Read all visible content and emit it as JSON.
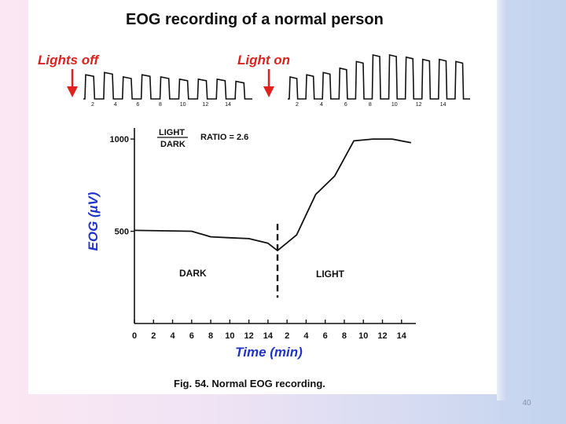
{
  "slide": {
    "title": "EOG recording of a normal person",
    "caption": "Fig. 54. Normal EOG recording.",
    "page_number": "40"
  },
  "raw_trace": {
    "lights_off_label": "Lights off",
    "light_on_label": "Light on",
    "dark_tick_labels": [
      "2",
      "4",
      "6",
      "8",
      "10",
      "12",
      "14"
    ],
    "light_tick_labels": [
      "2",
      "4",
      "6",
      "8",
      "10",
      "12",
      "14"
    ],
    "dark_pulse_amplitudes": [
      0.55,
      0.6,
      0.5,
      0.55,
      0.5,
      0.45,
      0.45,
      0.45,
      0.4
    ],
    "light_pulse_amplitudes": [
      0.5,
      0.55,
      0.6,
      0.7,
      0.85,
      1.0,
      1.0,
      0.95,
      0.9,
      0.9,
      0.85
    ],
    "arrow_color": "#e0221f"
  },
  "chart_data": {
    "type": "line",
    "title": "",
    "xlabel": "Time (min)",
    "ylabel": "EOG (µV)",
    "ratio_label": {
      "numerator": "LIGHT",
      "denominator": "DARK",
      "value": "RATIO = 2.6"
    },
    "region_labels": {
      "dark": "DARK",
      "light": "LIGHT"
    },
    "y_ticks": [
      {
        "value": 500,
        "label": "500"
      },
      {
        "value": 1000,
        "label": "1000"
      }
    ],
    "ylim": [
      0,
      1060
    ],
    "x_ticks": [
      {
        "t": 0,
        "label": "0"
      },
      {
        "t": 2,
        "label": "2"
      },
      {
        "t": 4,
        "label": "4"
      },
      {
        "t": 6,
        "label": "6"
      },
      {
        "t": 8,
        "label": "8"
      },
      {
        "t": 10,
        "label": "10"
      },
      {
        "t": 12,
        "label": "12"
      },
      {
        "t": 14,
        "label": "14"
      },
      {
        "t": 16,
        "label": "2"
      },
      {
        "t": 18,
        "label": "4"
      },
      {
        "t": 20,
        "label": "6"
      },
      {
        "t": 22,
        "label": "8"
      },
      {
        "t": 24,
        "label": "10"
      },
      {
        "t": 26,
        "label": "12"
      },
      {
        "t": 28,
        "label": "14"
      }
    ],
    "xlim": [
      0,
      29.5
    ],
    "lights_on_at": 15,
    "grid": false,
    "series": [
      {
        "color": "#111111",
        "points": [
          [
            0,
            505
          ],
          [
            6,
            500
          ],
          [
            8,
            470
          ],
          [
            10,
            465
          ],
          [
            12,
            460
          ],
          [
            14,
            435
          ],
          [
            15,
            395
          ],
          [
            17,
            480
          ],
          [
            19,
            700
          ],
          [
            21,
            800
          ],
          [
            23,
            990
          ],
          [
            25,
            1000
          ],
          [
            27,
            1000
          ],
          [
            29,
            980
          ]
        ]
      }
    ]
  }
}
